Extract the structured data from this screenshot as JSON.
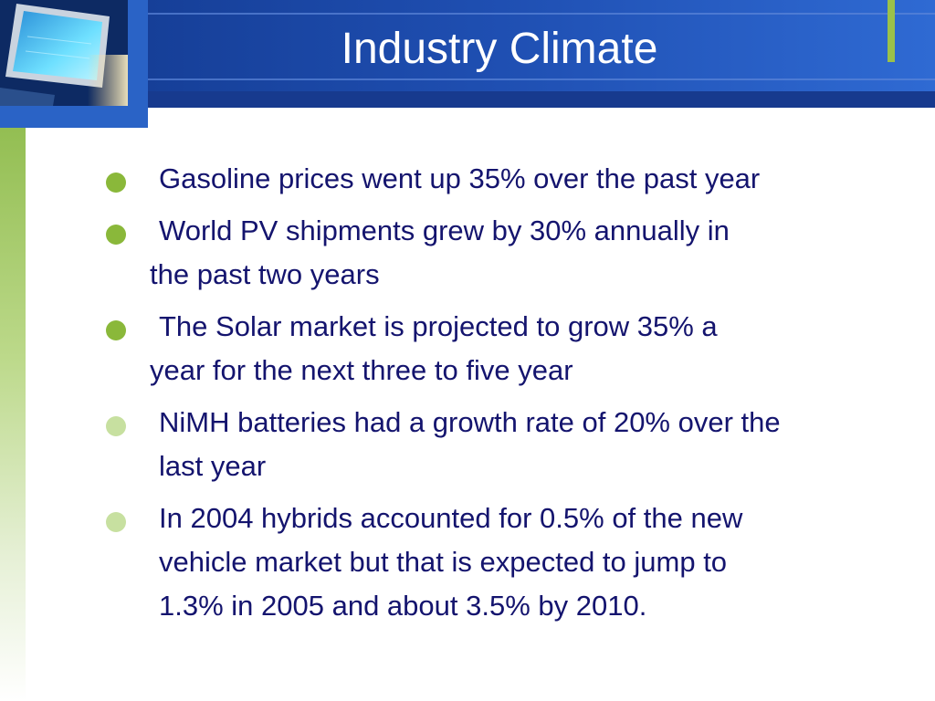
{
  "slide": {
    "title": "Industry Climate",
    "bullets": [
      {
        "lines": [
          "Gasoline prices went up 35% over the past year"
        ],
        "style": "strong"
      },
      {
        "lines": [
          "World PV shipments grew by 30% annually in",
          "the past two years"
        ],
        "style": "strong"
      },
      {
        "lines": [
          "The Solar market is projected to grow 35% a",
          "year for the next three to five year"
        ],
        "style": "strong"
      },
      {
        "lines": [
          "NiMH batteries had a growth rate of 20% over the",
          "last year"
        ],
        "style": "light"
      },
      {
        "lines": [
          "In 2004 hybrids accounted for 0.5% of the new",
          "vehicle market but that is expected to jump to",
          "1.3% in 2005 and about 3.5% by 2010."
        ],
        "style": "light"
      }
    ]
  },
  "colors": {
    "header_blue": "#123f9a",
    "accent_green": "#9bc14a",
    "text_navy": "#14146e"
  },
  "icons": {
    "logo": "monitor-screen-image",
    "bullet": "circle-bullet-icon"
  }
}
